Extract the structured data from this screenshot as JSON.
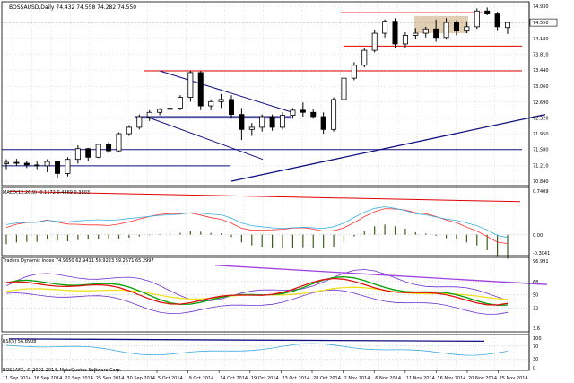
{
  "window": {
    "symbol_line": "BOSSAUSD,Daily 74.432 74.558 74.282 74.550",
    "copyright": "BOSSAFX, © 2001-2014, MetaQuotes Software Corp."
  },
  "price_axis": {
    "labels": [
      "74.930",
      "74.550",
      "74.180",
      "73.810",
      "73.440",
      "73.060",
      "72.690",
      "72.320",
      "71.950",
      "71.580",
      "71.210",
      "70.840"
    ],
    "current_price": "74.550"
  },
  "indicators": {
    "macd": {
      "label": "MACD(12,26,9) -0.1172 0.4469 0.3803",
      "ticks": [
        "0.7409",
        "0.00",
        "-0.3041"
      ]
    },
    "tdi": {
      "label": "Traders Dynamic Index 74.9650 62.9411 50.9223 59.2571 65.2997",
      "ticks": [
        "96.991",
        "68",
        "50",
        "32",
        "3.6"
      ]
    },
    "rsi": {
      "label": "RSI(5) 56.8908",
      "ticks": [
        "100",
        "70",
        "30",
        "0"
      ]
    }
  },
  "date_axis": {
    "labels": [
      "11 Sep 2014",
      "16 Sep 2014",
      "21 Sep 2014",
      "25 Sep 2014",
      "30 Sep 2014",
      "5 Oct 2014",
      "9 Oct 2014",
      "14 Oct 2014",
      "19 Oct 2014",
      "23 Oct 2014",
      "28 Oct 2014",
      "2 Nov 2014",
      "6 Nov 2014",
      "11 Nov 2014",
      "16 Nov 2014",
      "20 Nov 2014",
      "25 Nov 2014"
    ]
  },
  "chart_data": {
    "type": "candlestick",
    "symbol": "BOSSAUSD",
    "timeframe": "Daily",
    "last": {
      "open": 74.432,
      "high": 74.558,
      "low": 74.282,
      "close": 74.55
    },
    "candles": [
      [
        71.25,
        71.35,
        71.12,
        71.28
      ],
      [
        71.28,
        71.36,
        71.2,
        71.26
      ],
      [
        71.26,
        71.32,
        71.15,
        71.22
      ],
      [
        71.22,
        71.3,
        71.12,
        71.2
      ],
      [
        71.2,
        71.35,
        71.05,
        71.3
      ],
      [
        71.3,
        71.32,
        70.92,
        71.02
      ],
      [
        71.02,
        71.4,
        70.95,
        71.35
      ],
      [
        71.35,
        71.68,
        71.25,
        71.6
      ],
      [
        71.6,
        71.62,
        71.3,
        71.4
      ],
      [
        71.4,
        71.72,
        71.38,
        71.7
      ],
      [
        71.7,
        71.75,
        71.5,
        71.55
      ],
      [
        71.55,
        71.98,
        71.52,
        71.95
      ],
      [
        71.95,
        72.15,
        71.9,
        72.1
      ],
      [
        72.1,
        72.4,
        72.05,
        72.35
      ],
      [
        72.35,
        72.5,
        72.25,
        72.45
      ],
      [
        72.45,
        72.55,
        72.38,
        72.52
      ],
      [
        72.52,
        72.62,
        72.45,
        72.55
      ],
      [
        72.55,
        72.85,
        72.5,
        72.8
      ],
      [
        72.8,
        73.42,
        72.7,
        73.38
      ],
      [
        73.38,
        73.42,
        72.5,
        72.6
      ],
      [
        72.6,
        72.75,
        72.5,
        72.7
      ],
      [
        72.7,
        72.88,
        72.55,
        72.75
      ],
      [
        72.75,
        72.85,
        72.3,
        72.4
      ],
      [
        72.4,
        72.55,
        71.8,
        72.05
      ],
      [
        72.05,
        72.2,
        71.9,
        72.1
      ],
      [
        72.1,
        72.4,
        72.0,
        72.35
      ],
      [
        72.35,
        72.4,
        72.02,
        72.1
      ],
      [
        72.1,
        72.45,
        72.05,
        72.38
      ],
      [
        72.38,
        72.55,
        72.3,
        72.5
      ],
      [
        72.5,
        72.68,
        72.35,
        72.45
      ],
      [
        72.45,
        72.52,
        72.3,
        72.35
      ],
      [
        72.35,
        72.45,
        71.95,
        72.05
      ],
      [
        72.05,
        72.8,
        72.0,
        72.75
      ],
      [
        72.75,
        73.3,
        72.7,
        73.25
      ],
      [
        73.25,
        73.62,
        73.2,
        73.55
      ],
      [
        73.55,
        73.95,
        73.5,
        73.9
      ],
      [
        73.9,
        74.38,
        73.85,
        74.3
      ],
      [
        74.3,
        74.62,
        74.2,
        74.58
      ],
      [
        74.58,
        74.65,
        73.95,
        74.05
      ],
      [
        74.05,
        74.32,
        73.95,
        74.25
      ],
      [
        74.25,
        74.42,
        74.15,
        74.3
      ],
      [
        74.3,
        74.45,
        74.2,
        74.4
      ],
      [
        74.4,
        74.62,
        74.1,
        74.2
      ],
      [
        74.2,
        74.65,
        74.15,
        74.55
      ],
      [
        74.55,
        74.6,
        74.25,
        74.35
      ],
      [
        74.35,
        74.58,
        74.3,
        74.45
      ],
      [
        74.45,
        74.88,
        74.4,
        74.82
      ],
      [
        74.82,
        74.9,
        74.72,
        74.75
      ],
      [
        74.75,
        74.8,
        74.35,
        74.45
      ],
      [
        74.432,
        74.558,
        74.282,
        74.55
      ]
    ],
    "y_range": [
      70.84,
      74.93
    ]
  }
}
